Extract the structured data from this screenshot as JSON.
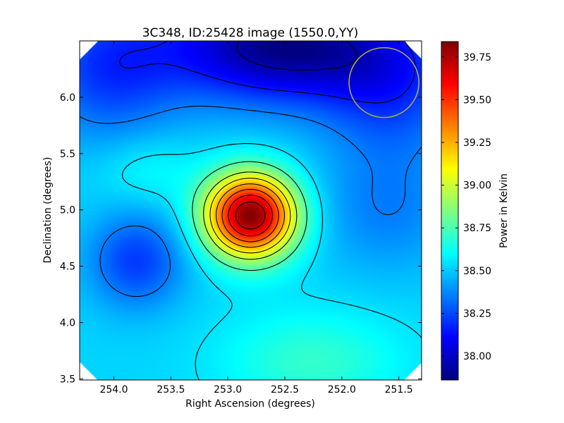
{
  "chart_data": {
    "type": "heatmap",
    "title": "3C348, ID:25428 image (1550.0,YY)",
    "xlabel": "Right Ascension (degrees)",
    "ylabel": "Declination (degrees)",
    "xlim": [
      254.3,
      251.3
    ],
    "ylim": [
      3.49,
      6.5
    ],
    "x_ticks": [
      {
        "value": 254.0,
        "label": "254.0"
      },
      {
        "value": 253.5,
        "label": "253.5"
      },
      {
        "value": 253.0,
        "label": "253.0"
      },
      {
        "value": 252.5,
        "label": "252.5"
      },
      {
        "value": 252.0,
        "label": "252.0"
      },
      {
        "value": 251.5,
        "label": "251.5"
      }
    ],
    "y_ticks": [
      {
        "value": 3.5,
        "label": "3.5"
      },
      {
        "value": 4.0,
        "label": "4.0"
      },
      {
        "value": 4.5,
        "label": "4.5"
      },
      {
        "value": 5.0,
        "label": "5.0"
      },
      {
        "value": 5.5,
        "label": "5.5"
      },
      {
        "value": 6.0,
        "label": "6.0"
      }
    ],
    "colorbar": {
      "label": "Power in Kelvin",
      "range": [
        37.86,
        39.84
      ],
      "colormap": "jet",
      "ticks": [
        {
          "value": 38.0,
          "label": "38.00"
        },
        {
          "value": 38.25,
          "label": "38.25"
        },
        {
          "value": 38.5,
          "label": "38.50"
        },
        {
          "value": 38.75,
          "label": "38.75"
        },
        {
          "value": 39.0,
          "label": "39.00"
        },
        {
          "value": 39.25,
          "label": "39.25"
        },
        {
          "value": 39.5,
          "label": "39.50"
        },
        {
          "value": 39.75,
          "label": "39.75"
        }
      ]
    },
    "field_model": {
      "baseline": 38.52,
      "components": [
        {
          "kind": "peak",
          "ra": 252.8,
          "dec": 4.95,
          "amplitude": 1.32,
          "sigma_ra": 0.28,
          "sigma_dec": 0.26
        },
        {
          "kind": "trough",
          "ra": 252.55,
          "dec": 6.45,
          "amplitude": -0.64,
          "sigma_ra": 0.7,
          "sigma_dec": 0.35
        },
        {
          "kind": "trough",
          "ra": 254.05,
          "dec": 6.25,
          "amplitude": -0.3,
          "sigma_ra": 0.45,
          "sigma_dec": 0.45
        },
        {
          "kind": "trough",
          "ra": 253.8,
          "dec": 4.55,
          "amplitude": -0.3,
          "sigma_ra": 0.3,
          "sigma_dec": 0.3
        },
        {
          "kind": "trough",
          "ra": 251.55,
          "dec": 6.1,
          "amplitude": -0.28,
          "sigma_ra": 0.45,
          "sigma_dec": 0.45
        },
        {
          "kind": "trough",
          "ra": 251.6,
          "dec": 5.0,
          "amplitude": -0.16,
          "sigma_ra": 0.45,
          "sigma_dec": 0.4
        },
        {
          "kind": "peak",
          "ra": 252.25,
          "dec": 3.65,
          "amplitude": 0.18,
          "sigma_ra": 0.55,
          "sigma_dec": 0.32
        },
        {
          "kind": "peak",
          "ra": 253.7,
          "dec": 5.35,
          "amplitude": 0.1,
          "sigma_ra": 0.3,
          "sigma_dec": 0.22
        }
      ]
    },
    "contour_levels": [
      37.95,
      38.15,
      38.35,
      38.55,
      38.75,
      38.95,
      39.1,
      39.25,
      39.4,
      39.55,
      39.7
    ],
    "annotations": [
      {
        "kind": "beam-circle",
        "ra": 251.63,
        "dec": 6.13,
        "radius_deg": 0.31,
        "color": "#b8b040"
      }
    ],
    "grid": false,
    "legend": "colorbar-right"
  }
}
